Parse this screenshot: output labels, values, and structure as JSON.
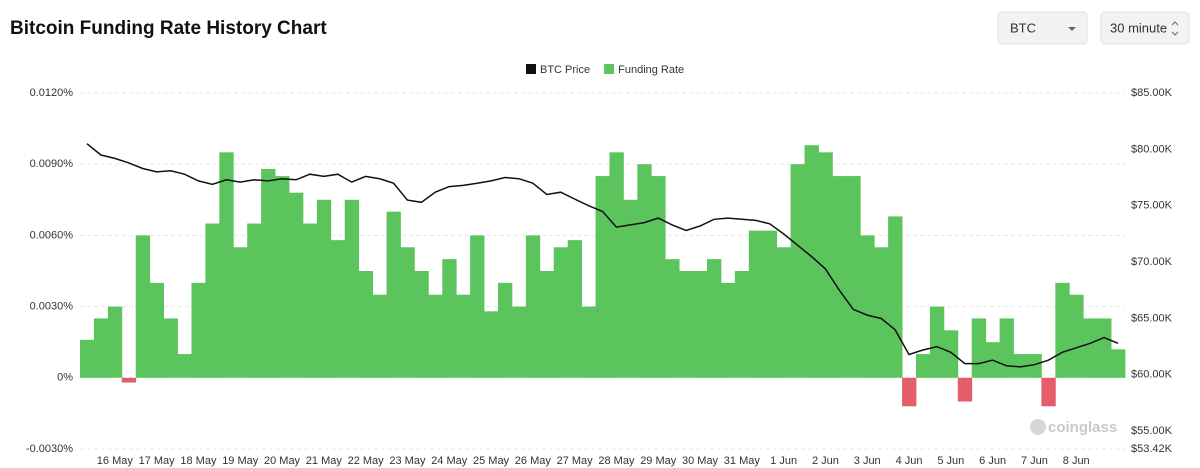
{
  "header": {
    "title": "Bitcoin Funding Rate History Chart",
    "selects": [
      "BTC",
      "30 minute"
    ]
  },
  "watermark": "coinglass",
  "chart_data": {
    "type": "combo",
    "categories": [
      null,
      null,
      "16 May",
      null,
      null,
      "17 May",
      null,
      null,
      "18 May",
      null,
      null,
      "19 May",
      null,
      null,
      "20 May",
      null,
      null,
      "21 May",
      null,
      null,
      "22 May",
      null,
      null,
      "23 May",
      null,
      null,
      "24 May",
      null,
      null,
      "25 May",
      null,
      null,
      "26 May",
      null,
      null,
      "27 May",
      null,
      null,
      "28 May",
      null,
      null,
      "29 May",
      null,
      null,
      "30 May",
      null,
      null,
      "31 May",
      null,
      null,
      "1 Jun",
      null,
      null,
      "2 Jun",
      null,
      null,
      "3 Jun",
      null,
      null,
      "4 Jun",
      null,
      null,
      "5 Jun",
      null,
      null,
      "6 Jun",
      null,
      null,
      "7 Jun",
      null,
      null,
      "8 Jun",
      null,
      null,
      null
    ],
    "series": [
      {
        "name": "BTC Price",
        "kind": "line",
        "axis": "y2",
        "color": "#111111",
        "values": [
          80500,
          79500,
          79200,
          78800,
          78300,
          78000,
          78100,
          77800,
          77200,
          76900,
          77300,
          77100,
          77300,
          77200,
          77400,
          77300,
          77800,
          77600,
          77800,
          77100,
          77600,
          77400,
          77000,
          75500,
          75300,
          76200,
          76700,
          76800,
          77000,
          77200,
          77500,
          77400,
          77000,
          76000,
          76200,
          75600,
          75000,
          74500,
          73100,
          73300,
          73500,
          73900,
          73300,
          72800,
          73200,
          73800,
          73900,
          73800,
          73700,
          73400,
          72500,
          71500,
          70500,
          69400,
          67500,
          65800,
          65300,
          65000,
          64000,
          61800,
          62200,
          62500,
          62000,
          61000,
          61000,
          61300,
          60800,
          60700,
          60900,
          61300,
          62000,
          62400,
          62800,
          63300,
          62800
        ]
      },
      {
        "name": "Funding Rate",
        "kind": "area",
        "axis": "y",
        "color": "#5cc45c",
        "negative_color": "#e35d6a",
        "values": [
          0.0016,
          0.0025,
          0.003,
          -0.0002,
          0.006,
          0.004,
          0.0025,
          0.001,
          0.004,
          0.0065,
          0.0095,
          0.0055,
          0.0065,
          0.0088,
          0.0085,
          0.0078,
          0.0065,
          0.0075,
          0.0058,
          0.0075,
          0.0045,
          0.0035,
          0.007,
          0.0055,
          0.0045,
          0.0035,
          0.005,
          0.0035,
          0.006,
          0.0028,
          0.004,
          0.003,
          0.006,
          0.0045,
          0.0055,
          0.0058,
          0.003,
          0.0085,
          0.0095,
          0.0075,
          0.009,
          0.0085,
          0.005,
          0.0045,
          0.0045,
          0.005,
          0.004,
          0.0045,
          0.0062,
          0.0062,
          0.0055,
          0.009,
          0.0098,
          0.0095,
          0.0085,
          0.0085,
          0.006,
          0.0055,
          0.0068,
          -0.0012,
          0.001,
          0.003,
          0.002,
          -0.001,
          0.0025,
          0.0015,
          0.0025,
          0.001,
          0.001,
          -0.0012,
          0.004,
          0.0035,
          0.0025,
          0.0025,
          0.0012
        ]
      }
    ],
    "ylim": [
      -0.003,
      0.012
    ],
    "yticks": [
      {
        "value": -0.003,
        "label": "-0.0030%"
      },
      {
        "value": 0,
        "label": "0%"
      },
      {
        "value": 0.003,
        "label": "0.0030%"
      },
      {
        "value": 0.006,
        "label": "0.0060%"
      },
      {
        "value": 0.009,
        "label": "0.0090%"
      },
      {
        "value": 0.012,
        "label": "0.0120%"
      }
    ],
    "y2lim": [
      53420,
      85000
    ],
    "y2ticks": [
      {
        "value": 53420,
        "label": "$53.42K"
      },
      {
        "value": 55000,
        "label": "$55.00K"
      },
      {
        "value": 60000,
        "label": "$60.00K"
      },
      {
        "value": 65000,
        "label": "$65.00K"
      },
      {
        "value": 70000,
        "label": "$70.00K"
      },
      {
        "value": 75000,
        "label": "$75.00K"
      },
      {
        "value": 80000,
        "label": "$80.00K"
      },
      {
        "value": 85000,
        "label": "$85.00K"
      }
    ],
    "grid": true,
    "legend": "top"
  }
}
